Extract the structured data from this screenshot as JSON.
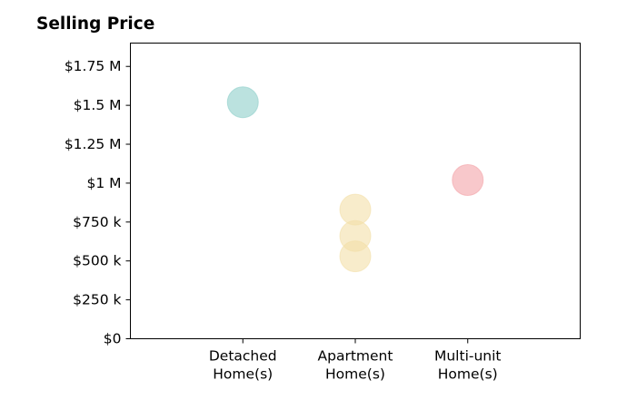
{
  "chart_data": {
    "type": "scatter",
    "title": "Selling Price",
    "xlabel": "",
    "ylabel": "",
    "categories": [
      [
        "Detached",
        "Home(s)"
      ],
      [
        "Apartment",
        "Home(s)"
      ],
      [
        "Multi-unit",
        "Home(s)"
      ]
    ],
    "xlim": [
      0,
      4
    ],
    "ylim": [
      0,
      1900000
    ],
    "yticks": [
      {
        "value": 0,
        "label": "$0"
      },
      {
        "value": 250000,
        "label": "$250 k"
      },
      {
        "value": 500000,
        "label": "$500 k"
      },
      {
        "value": 750000,
        "label": "$750 k"
      },
      {
        "value": 1000000,
        "label": "$1 M"
      },
      {
        "value": 1250000,
        "label": "$1.25 M"
      },
      {
        "value": 1500000,
        "label": "$1.5 M"
      },
      {
        "value": 1750000,
        "label": "$1.75 M"
      }
    ],
    "grid": false,
    "points": [
      {
        "category": 1,
        "value": 1520000,
        "color": "#8ecfc9"
      },
      {
        "category": 2,
        "value": 830000,
        "color": "#f3dfa9"
      },
      {
        "category": 2,
        "value": 660000,
        "color": "#f3dfa9"
      },
      {
        "category": 2,
        "value": 530000,
        "color": "#f3dfa9"
      },
      {
        "category": 3,
        "value": 1020000,
        "color": "#f4a3a8"
      }
    ]
  }
}
